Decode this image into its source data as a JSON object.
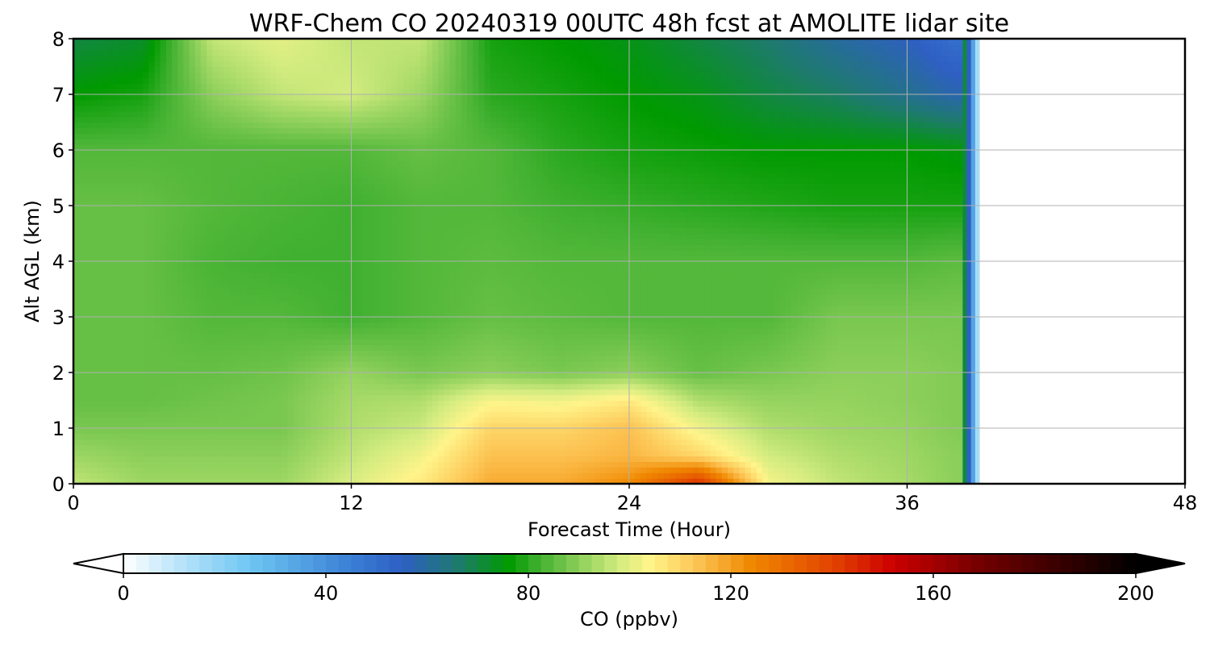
{
  "chart_data": {
    "type": "heatmap",
    "title": "WRF-Chem CO  20240319 00UTC 48h fcst at AMOLITE lidar site",
    "xlabel": "Forecast Time (Hour)",
    "ylabel": "Alt AGL (km)",
    "xlim": [
      0,
      48
    ],
    "ylim": [
      0,
      8
    ],
    "x_ticks": [
      0,
      12,
      24,
      36,
      48
    ],
    "y_ticks": [
      0,
      1,
      2,
      3,
      4,
      5,
      6,
      7,
      8
    ],
    "grid": true,
    "data_valid_until_hour": 38.5,
    "colorbar": {
      "label": "CO  (ppbv)",
      "range": [
        0,
        200
      ],
      "ticks": [
        0,
        40,
        80,
        120,
        160,
        200
      ],
      "extend": "both",
      "orientation": "horizontal",
      "colors": [
        {
          "value": 0,
          "color": "#ffffff"
        },
        {
          "value": 10,
          "color": "#bfe6fa"
        },
        {
          "value": 25,
          "color": "#6ec6f3"
        },
        {
          "value": 45,
          "color": "#3a7fd4"
        },
        {
          "value": 55,
          "color": "#2f5fc4"
        },
        {
          "value": 66,
          "color": "#1e7a6e"
        },
        {
          "value": 76,
          "color": "#009a00"
        },
        {
          "value": 82,
          "color": "#40b030"
        },
        {
          "value": 90,
          "color": "#8ccf5a"
        },
        {
          "value": 98,
          "color": "#d4ec80"
        },
        {
          "value": 104,
          "color": "#fff48a"
        },
        {
          "value": 114,
          "color": "#fcc150"
        },
        {
          "value": 124,
          "color": "#f08800"
        },
        {
          "value": 140,
          "color": "#e24400"
        },
        {
          "value": 152,
          "color": "#cc0000"
        },
        {
          "value": 170,
          "color": "#700000"
        },
        {
          "value": 200,
          "color": "#000000"
        }
      ]
    },
    "field": {
      "hours": [
        0,
        3,
        6,
        9,
        12,
        15,
        18,
        21,
        24,
        27,
        30,
        33,
        36,
        38
      ],
      "altitudes_km": [
        0,
        0.5,
        1,
        1.5,
        2,
        3,
        4,
        5,
        6,
        7,
        8
      ],
      "values_ppbv": [
        [
          96,
          92,
          92,
          92,
          99,
          106,
          118,
          118,
          124,
          145,
          103,
          96,
          93,
          90
        ],
        [
          92,
          90,
          90,
          90,
          96,
          102,
          114,
          114,
          116,
          110,
          98,
          94,
          92,
          90
        ],
        [
          88,
          88,
          88,
          88,
          94,
          97,
          110,
          110,
          114,
          102,
          94,
          92,
          91,
          89
        ],
        [
          86,
          86,
          87,
          88,
          93,
          94,
          103,
          102,
          106,
          94,
          91,
          91,
          90,
          89
        ],
        [
          86,
          86,
          86,
          87,
          91,
          88,
          90,
          88,
          90,
          86,
          88,
          90,
          90,
          89
        ],
        [
          86,
          86,
          84,
          84,
          82,
          84,
          86,
          85,
          84,
          84,
          84,
          88,
          88,
          88
        ],
        [
          86,
          86,
          83,
          82,
          82,
          84,
          85,
          84,
          84,
          84,
          84,
          84,
          84,
          85
        ],
        [
          86,
          86,
          84,
          83,
          82,
          84,
          84,
          82,
          81,
          80,
          79,
          78,
          78,
          78
        ],
        [
          84,
          84,
          84,
          84,
          84,
          86,
          84,
          80,
          78,
          77,
          76,
          76,
          76,
          75
        ],
        [
          76,
          78,
          90,
          96,
          98,
          92,
          80,
          78,
          76,
          74,
          70,
          67,
          62,
          58
        ],
        [
          70,
          72,
          96,
          100,
          96,
          96,
          78,
          76,
          74,
          70,
          66,
          60,
          56,
          50
        ]
      ]
    }
  }
}
